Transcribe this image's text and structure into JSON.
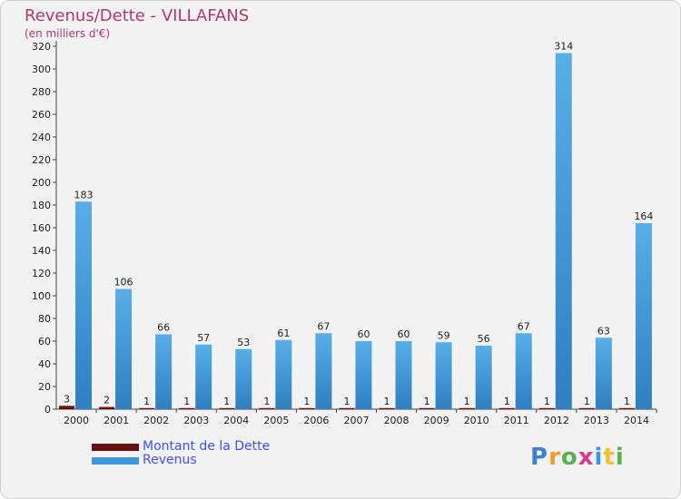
{
  "title": "Revenus/Dette - VILLAFANS",
  "subtitle": "(en milliers d'€)",
  "logo": {
    "text": "Proxiti",
    "letters": [
      "P",
      "r",
      "o",
      "x",
      "i",
      "t",
      "i"
    ]
  },
  "colors": {
    "dette": "#6b0e12",
    "revenus": "#3f95dc",
    "title": "#b23a6a",
    "legend_text": "#3d52ff",
    "logo": [
      "#3f7fd0",
      "#f29a2e",
      "#5bb14a",
      "#d23a8a",
      "#3f95dc",
      "#f2c12e",
      "#5bb14a"
    ]
  },
  "legend": {
    "dette_label": "Montant de la Dette",
    "revenus_label": "Revenus"
  },
  "chart_data": {
    "type": "bar",
    "title": "Revenus/Dette - VILLAFANS",
    "ylabel": "(en milliers d'€)",
    "xlabel": "",
    "categories": [
      "2000",
      "2001",
      "2002",
      "2003",
      "2004",
      "2005",
      "2006",
      "2007",
      "2008",
      "2009",
      "2010",
      "2011",
      "2012",
      "2013",
      "2014"
    ],
    "series": [
      {
        "name": "Montant de la Dette",
        "values": [
          3,
          2,
          1,
          1,
          1,
          1,
          1,
          1,
          1,
          1,
          1,
          1,
          1,
          1,
          1
        ]
      },
      {
        "name": "Revenus",
        "values": [
          183,
          106,
          66,
          57,
          53,
          61,
          67,
          60,
          60,
          59,
          56,
          67,
          314,
          63,
          164
        ]
      }
    ],
    "ylim": [
      0,
      320
    ],
    "yticks": [
      0,
      20,
      40,
      60,
      80,
      100,
      120,
      140,
      160,
      180,
      200,
      220,
      240,
      260,
      280,
      300,
      320
    ],
    "grid": false,
    "legend_position": "bottom-left"
  }
}
